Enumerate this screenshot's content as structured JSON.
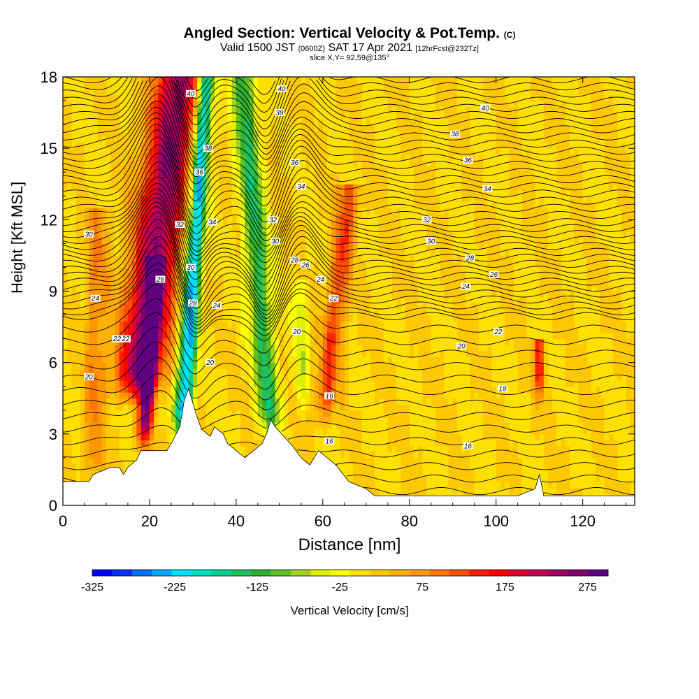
{
  "title": {
    "main": "Angled Section: Vertical Velocity & Pot.Temp.",
    "main_suffix": "(C)",
    "valid_prefix": "Valid 1500 JST",
    "valid_z": "(0600Z)",
    "valid_date": "SAT 17 Apr 2021",
    "valid_fcst": "[12hrFcst@232Tz]",
    "slice": "slice X,Y= 92,59@135°"
  },
  "chart_data": {
    "type": "heatmap",
    "xlabel": "Distance [nm]",
    "ylabel": "Height [Kft MSL]",
    "xlim": [
      0,
      132
    ],
    "ylim": [
      0,
      18
    ],
    "xticks": [
      0,
      20,
      40,
      60,
      80,
      100,
      120
    ],
    "yticks": [
      0,
      3,
      6,
      9,
      12,
      15,
      18
    ],
    "colorbar": {
      "label": "Vertical Velocity [cm/s]",
      "min": -325,
      "max": 300,
      "tick_labels": [
        "-325",
        "-225",
        "-125",
        "-25",
        "75",
        "175",
        "275"
      ],
      "tick_values": [
        -325,
        -225,
        -125,
        -25,
        75,
        175,
        275
      ],
      "colors": [
        "#0000ff",
        "#0030ff",
        "#0070ff",
        "#00a8ff",
        "#00e0ff",
        "#00e0c0",
        "#00d090",
        "#20c060",
        "#30b030",
        "#60c020",
        "#a0d020",
        "#e0f000",
        "#ffff00",
        "#ffe000",
        "#ffc800",
        "#ffb000",
        "#ff9800",
        "#ff7800",
        "#ff5000",
        "#ff2000",
        "#ff0000",
        "#e00030",
        "#c00050",
        "#a00060",
        "#800070",
        "#600080"
      ]
    },
    "terrain_kft": [
      [
        0,
        1.0
      ],
      [
        6,
        1.0
      ],
      [
        7,
        1.3
      ],
      [
        11,
        1.6
      ],
      [
        13,
        1.6
      ],
      [
        14,
        1.3
      ],
      [
        15,
        1.6
      ],
      [
        17,
        1.9
      ],
      [
        18,
        2.3
      ],
      [
        24,
        2.3
      ],
      [
        25,
        2.6
      ],
      [
        27,
        3.3
      ],
      [
        28,
        4.4
      ],
      [
        29,
        4.9
      ],
      [
        30,
        4.3
      ],
      [
        31,
        3.7
      ],
      [
        32,
        3.2
      ],
      [
        34,
        2.9
      ],
      [
        35,
        3.3
      ],
      [
        37,
        3.0
      ],
      [
        38,
        2.6
      ],
      [
        40,
        2.3
      ],
      [
        42,
        2.0
      ],
      [
        44,
        2.3
      ],
      [
        46,
        2.6
      ],
      [
        47,
        3.0
      ],
      [
        48,
        3.6
      ],
      [
        49,
        3.3
      ],
      [
        51,
        2.9
      ],
      [
        53,
        2.5
      ],
      [
        55,
        2.0
      ],
      [
        57,
        1.7
      ],
      [
        59,
        2.3
      ],
      [
        61,
        2.0
      ],
      [
        63,
        1.7
      ],
      [
        66,
        1.0
      ],
      [
        70,
        0.7
      ],
      [
        72,
        0.4
      ],
      [
        90,
        0.4
      ],
      [
        105,
        0.4
      ],
      [
        109,
        0.7
      ],
      [
        110,
        1.3
      ],
      [
        111,
        0.4
      ],
      [
        132,
        0.4
      ]
    ],
    "updrafts": [
      {
        "x0": 17.0,
        "x1": 27.0,
        "z0": 4.5,
        "z1": 18,
        "w": 5.5,
        "peak": 240
      },
      {
        "x0": 18.5,
        "x1": 21.5,
        "z0": 2.5,
        "z1": 10,
        "w": 1.6,
        "peak": 260
      },
      {
        "x0": 60.0,
        "x1": 66.0,
        "z0": 3.5,
        "z1": 13,
        "w": 2.4,
        "peak": 120
      },
      {
        "x0": 7.0,
        "x1": 8.0,
        "z0": 1.0,
        "z1": 12,
        "w": 2.5,
        "peak": 70
      },
      {
        "x0": 110.0,
        "x1": 110.0,
        "z0": 4.5,
        "z1": 6.5,
        "w": 1.2,
        "peak": 150
      }
    ],
    "downdrafts": [
      {
        "x0": 27.5,
        "x1": 33.0,
        "z0": 3.0,
        "z1": 18,
        "w": 2.0,
        "peak": -260
      },
      {
        "x0": 48.0,
        "x1": 41.5,
        "z0": 3.0,
        "z1": 18,
        "w": 2.6,
        "peak": -150
      },
      {
        "x0": 55.0,
        "x1": 55.0,
        "z0": 4.0,
        "z1": 9,
        "w": 1.4,
        "peak": -60
      }
    ],
    "theta_labels": [
      {
        "v": 40,
        "x": 29.5,
        "z": 17.3
      },
      {
        "v": 38,
        "x": 33.5,
        "z": 15.0
      },
      {
        "v": 36,
        "x": 31.5,
        "z": 14.0
      },
      {
        "v": 34,
        "x": 34.5,
        "z": 11.9
      },
      {
        "v": 32,
        "x": 27.0,
        "z": 11.8
      },
      {
        "v": 30,
        "x": 29.5,
        "z": 10.0
      },
      {
        "v": 28,
        "x": 30.0,
        "z": 8.5
      },
      {
        "v": 26,
        "x": 22.5,
        "z": 9.5
      },
      {
        "v": 24,
        "x": 35.5,
        "z": 8.4
      },
      {
        "v": 22,
        "x": 14.5,
        "z": 7.0
      },
      {
        "v": 20,
        "x": 34.0,
        "z": 6.0
      },
      {
        "v": 40,
        "x": 50.5,
        "z": 17.5
      },
      {
        "v": 38,
        "x": 50.0,
        "z": 16.5
      },
      {
        "v": 36,
        "x": 53.5,
        "z": 14.4
      },
      {
        "v": 34,
        "x": 55.0,
        "z": 13.4
      },
      {
        "v": 32,
        "x": 48.5,
        "z": 12.0
      },
      {
        "v": 30,
        "x": 49.0,
        "z": 11.1
      },
      {
        "v": 28,
        "x": 53.5,
        "z": 10.3
      },
      {
        "v": 26,
        "x": 56.0,
        "z": 10.1
      },
      {
        "v": 24,
        "x": 59.5,
        "z": 9.5
      },
      {
        "v": 22,
        "x": 62.5,
        "z": 8.7
      },
      {
        "v": 20,
        "x": 54.0,
        "z": 7.3
      },
      {
        "v": 16,
        "x": 61.5,
        "z": 4.6
      },
      {
        "v": 16,
        "x": 61.5,
        "z": 2.7
      },
      {
        "v": 40,
        "x": 97.5,
        "z": 16.7
      },
      {
        "v": 38,
        "x": 90.5,
        "z": 15.6
      },
      {
        "v": 36,
        "x": 93.5,
        "z": 14.5
      },
      {
        "v": 34,
        "x": 98.0,
        "z": 13.3
      },
      {
        "v": 32,
        "x": 84.0,
        "z": 12.0
      },
      {
        "v": 30,
        "x": 85.0,
        "z": 11.1
      },
      {
        "v": 28,
        "x": 94.0,
        "z": 10.4
      },
      {
        "v": 26,
        "x": 99.5,
        "z": 9.7
      },
      {
        "v": 24,
        "x": 93.0,
        "z": 9.2
      },
      {
        "v": 22,
        "x": 100.5,
        "z": 7.3
      },
      {
        "v": 20,
        "x": 92.0,
        "z": 6.7
      },
      {
        "v": 18,
        "x": 101.5,
        "z": 4.9
      },
      {
        "v": 16,
        "x": 93.5,
        "z": 2.5
      },
      {
        "v": 30,
        "x": 6.0,
        "z": 11.4
      },
      {
        "v": 24,
        "x": 7.5,
        "z": 8.7
      },
      {
        "v": 22,
        "x": 12.5,
        "z": 7.0
      },
      {
        "v": 20,
        "x": 6.0,
        "z": 5.4
      }
    ]
  }
}
